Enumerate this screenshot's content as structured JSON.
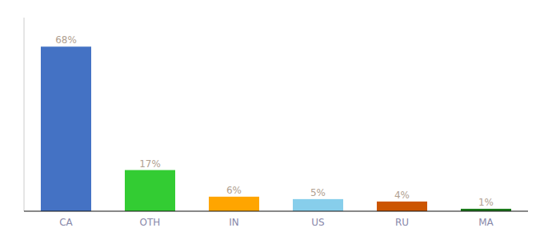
{
  "chart_data": {
    "type": "bar",
    "categories": [
      "CA",
      "OTH",
      "IN",
      "US",
      "RU",
      "MA"
    ],
    "values": [
      68,
      17,
      6,
      5,
      4,
      1
    ],
    "value_labels": [
      "68%",
      "17%",
      "6%",
      "5%",
      "4%",
      "1%"
    ],
    "colors": [
      "#4472C4",
      "#33CC33",
      "#FFA500",
      "#87CEEB",
      "#CC5500",
      "#1A7A1A"
    ],
    "ylim": [
      0,
      80
    ],
    "data_labels": true,
    "tick_labels": "x",
    "grid": false
  }
}
